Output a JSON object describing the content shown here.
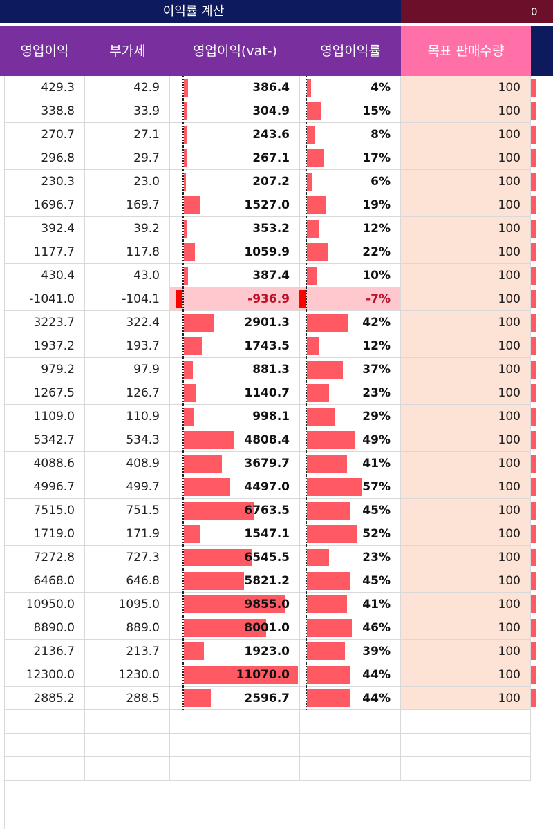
{
  "banner": {
    "title": "이익률 계산",
    "right_fragment": "0"
  },
  "headers": [
    "영업이익",
    "부가세",
    "영업이익(vat-)",
    "영업이익률",
    "목표 판매수량"
  ],
  "colors": {
    "header_purple": "#7a2f9e",
    "header_pink": "#ff6fa8",
    "banner_navy": "#0d1b5e",
    "banner_maroon": "#6b0f2a",
    "bar_red": "#ff5a63",
    "peach": "#fde2d6"
  },
  "rows": [
    {
      "op": "429.3",
      "vat": "42.9",
      "net": "386.4",
      "pct": "4%",
      "qty": "100",
      "netv": 386.4,
      "pctv": 4
    },
    {
      "op": "338.8",
      "vat": "33.9",
      "net": "304.9",
      "pct": "15%",
      "qty": "100",
      "netv": 304.9,
      "pctv": 15
    },
    {
      "op": "270.7",
      "vat": "27.1",
      "net": "243.6",
      "pct": "8%",
      "qty": "100",
      "netv": 243.6,
      "pctv": 8
    },
    {
      "op": "296.8",
      "vat": "29.7",
      "net": "267.1",
      "pct": "17%",
      "qty": "100",
      "netv": 267.1,
      "pctv": 17
    },
    {
      "op": "230.3",
      "vat": "23.0",
      "net": "207.2",
      "pct": "6%",
      "qty": "100",
      "netv": 207.2,
      "pctv": 6
    },
    {
      "op": "1696.7",
      "vat": "169.7",
      "net": "1527.0",
      "pct": "19%",
      "qty": "100",
      "netv": 1527.0,
      "pctv": 19
    },
    {
      "op": "392.4",
      "vat": "39.2",
      "net": "353.2",
      "pct": "12%",
      "qty": "100",
      "netv": 353.2,
      "pctv": 12
    },
    {
      "op": "1177.7",
      "vat": "117.8",
      "net": "1059.9",
      "pct": "22%",
      "qty": "100",
      "netv": 1059.9,
      "pctv": 22
    },
    {
      "op": "430.4",
      "vat": "43.0",
      "net": "387.4",
      "pct": "10%",
      "qty": "100",
      "netv": 387.4,
      "pctv": 10
    },
    {
      "op": "-1041.0",
      "vat": "-104.1",
      "net": "-936.9",
      "pct": "-7%",
      "qty": "100",
      "netv": -936.9,
      "pctv": -7
    },
    {
      "op": "3223.7",
      "vat": "322.4",
      "net": "2901.3",
      "pct": "42%",
      "qty": "100",
      "netv": 2901.3,
      "pctv": 42
    },
    {
      "op": "1937.2",
      "vat": "193.7",
      "net": "1743.5",
      "pct": "12%",
      "qty": "100",
      "netv": 1743.5,
      "pctv": 12
    },
    {
      "op": "979.2",
      "vat": "97.9",
      "net": "881.3",
      "pct": "37%",
      "qty": "100",
      "netv": 881.3,
      "pctv": 37
    },
    {
      "op": "1267.5",
      "vat": "126.7",
      "net": "1140.7",
      "pct": "23%",
      "qty": "100",
      "netv": 1140.7,
      "pctv": 23
    },
    {
      "op": "1109.0",
      "vat": "110.9",
      "net": "998.1",
      "pct": "29%",
      "qty": "100",
      "netv": 998.1,
      "pctv": 29
    },
    {
      "op": "5342.7",
      "vat": "534.3",
      "net": "4808.4",
      "pct": "49%",
      "qty": "100",
      "netv": 4808.4,
      "pctv": 49
    },
    {
      "op": "4088.6",
      "vat": "408.9",
      "net": "3679.7",
      "pct": "41%",
      "qty": "100",
      "netv": 3679.7,
      "pctv": 41
    },
    {
      "op": "4996.7",
      "vat": "499.7",
      "net": "4497.0",
      "pct": "57%",
      "qty": "100",
      "netv": 4497.0,
      "pctv": 57
    },
    {
      "op": "7515.0",
      "vat": "751.5",
      "net": "6763.5",
      "pct": "45%",
      "qty": "100",
      "netv": 6763.5,
      "pctv": 45
    },
    {
      "op": "1719.0",
      "vat": "171.9",
      "net": "1547.1",
      "pct": "52%",
      "qty": "100",
      "netv": 1547.1,
      "pctv": 52
    },
    {
      "op": "7272.8",
      "vat": "727.3",
      "net": "6545.5",
      "pct": "23%",
      "qty": "100",
      "netv": 6545.5,
      "pctv": 23
    },
    {
      "op": "6468.0",
      "vat": "646.8",
      "net": "5821.2",
      "pct": "45%",
      "qty": "100",
      "netv": 5821.2,
      "pctv": 45
    },
    {
      "op": "10950.0",
      "vat": "1095.0",
      "net": "9855.0",
      "pct": "41%",
      "qty": "100",
      "netv": 9855.0,
      "pctv": 41
    },
    {
      "op": "8890.0",
      "vat": "889.0",
      "net": "8001.0",
      "pct": "46%",
      "qty": "100",
      "netv": 8001.0,
      "pctv": 46
    },
    {
      "op": "2136.7",
      "vat": "213.7",
      "net": "1923.0",
      "pct": "39%",
      "qty": "100",
      "netv": 1923.0,
      "pctv": 39
    },
    {
      "op": "12300.0",
      "vat": "1230.0",
      "net": "11070.0",
      "pct": "44%",
      "qty": "100",
      "netv": 11070.0,
      "pctv": 44
    },
    {
      "op": "2885.2",
      "vat": "288.5",
      "net": "2596.7",
      "pct": "44%",
      "qty": "100",
      "netv": 2596.7,
      "pctv": 44
    }
  ]
}
